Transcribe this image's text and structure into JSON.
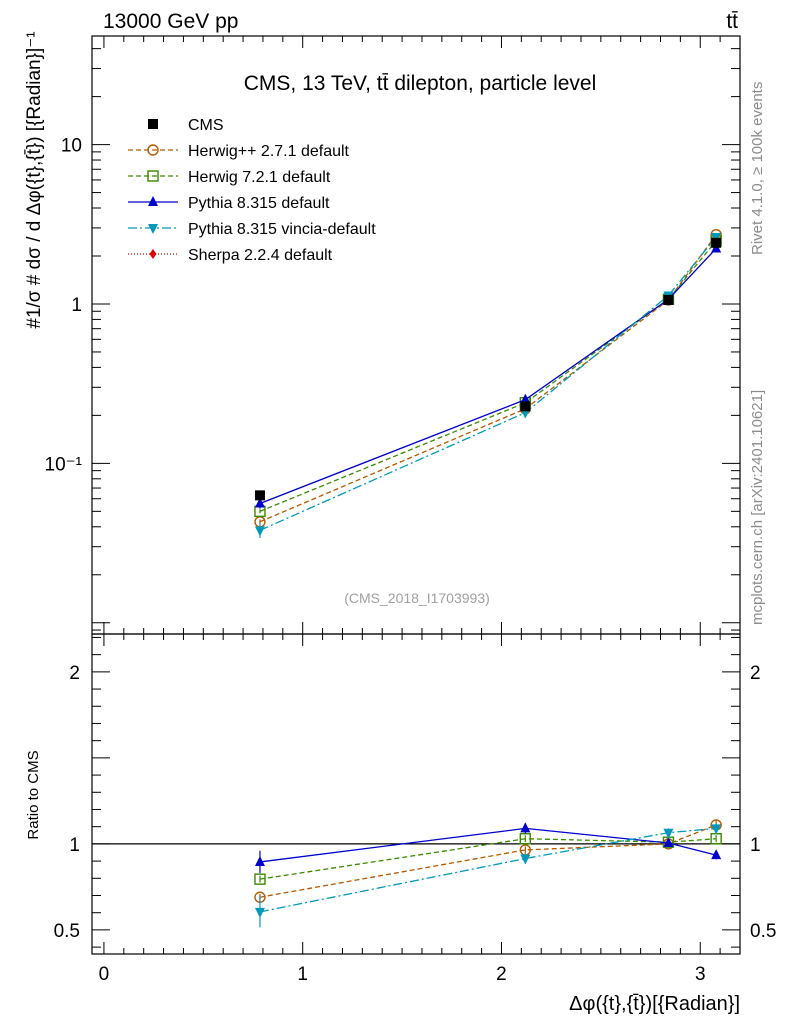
{
  "header": {
    "energy_label": "13000 GeV pp",
    "process_label": "tt̄"
  },
  "side_labels": {
    "rivet": "Rivet 4.1.0, ≥ 100k events",
    "mcplots": "mcplots.cern.ch [arXiv:2401.10621]"
  },
  "chart_data": [
    {
      "type": "line",
      "panel": "main",
      "title": "CMS, 13 TeV, tt̄ dilepton, particle level",
      "watermark": "(CMS_2018_I1703993)",
      "ylabel": "#1/σ # dσ / d Δφ({t},{t̄}) [{Radian}]⁻¹",
      "yscale": "log",
      "ylim": [
        0.0085,
        48
      ],
      "yticks": [
        {
          "value": 0.1,
          "label": "10⁻¹"
        },
        {
          "value": 1,
          "label": "1"
        },
        {
          "value": 10,
          "label": "10"
        }
      ],
      "xlim": [
        -0.06,
        3.2
      ],
      "xticks": [
        0,
        1,
        2,
        3
      ],
      "legend_position": "top-left",
      "data": {
        "name": "CMS",
        "x": [
          0.785,
          2.12,
          2.84,
          3.08
        ],
        "y": [
          0.063,
          0.228,
          1.06,
          2.42
        ],
        "color": "#000000",
        "marker": "square"
      },
      "series": [
        {
          "name": "Herwig++ 2.7.1 default",
          "x": [
            0.785,
            2.12,
            2.84,
            3.08
          ],
          "y": [
            0.043,
            0.22,
            1.06,
            2.72
          ],
          "color": "#b35900",
          "marker": "circle-open",
          "dash": "5,3",
          "yerr": [
            0.0015,
            0.004,
            0.01,
            0.05
          ]
        },
        {
          "name": "Herwig 7.2.1 default",
          "x": [
            0.785,
            2.12,
            2.84,
            3.08
          ],
          "y": [
            0.05,
            0.24,
            1.07,
            2.49
          ],
          "color": "#3a8a00",
          "marker": "square-open",
          "dash": "5,3",
          "yerr": [
            0.0015,
            0.004,
            0.01,
            0.04
          ]
        },
        {
          "name": "Pythia 8.315 default",
          "x": [
            0.785,
            2.12,
            2.84,
            3.08
          ],
          "y": [
            0.056,
            0.251,
            1.07,
            2.23
          ],
          "color": "#0000cc",
          "marker": "triangle-up",
          "dash": "",
          "yerr": [
            0.004,
            0.01,
            0.02,
            0.05
          ]
        },
        {
          "name": "Pythia 8.315 vincia-default",
          "x": [
            0.785,
            2.12,
            2.84,
            3.08
          ],
          "y": [
            0.038,
            0.208,
            1.13,
            2.63
          ],
          "color": "#0099bb",
          "marker": "triangle-down",
          "dash": "9,3,2,3",
          "yerr": [
            0.004,
            0.01,
            0.02,
            0.05
          ]
        },
        {
          "name": "Sherpa 2.2.4 default",
          "x": [],
          "y": [],
          "color": "#dd0000",
          "marker": "diamond",
          "dash": "1,2",
          "yerr": []
        }
      ]
    },
    {
      "type": "line",
      "panel": "ratio",
      "ylabel": "Ratio to CMS",
      "ylim": [
        0.36,
        2.22
      ],
      "yticks": [
        {
          "value": 0.5,
          "label": "0.5"
        },
        {
          "value": 1,
          "label": "1"
        },
        {
          "value": 2,
          "label": "2"
        }
      ],
      "xlabel": "Δφ({t},{t̄})[{Radian}]",
      "xlim": [
        -0.06,
        3.2
      ],
      "xticks": [
        {
          "value": 0,
          "label": "0"
        },
        {
          "value": 1,
          "label": "1"
        },
        {
          "value": 2,
          "label": "2"
        },
        {
          "value": 3,
          "label": "3"
        }
      ],
      "reference": 1,
      "series": [
        {
          "name": "Herwig++ 2.7.1 default",
          "x": [
            0.785,
            2.12,
            2.84,
            3.08
          ],
          "y": [
            0.69,
            0.965,
            1.0,
            1.11
          ],
          "yerr": [
            0.02,
            0.02,
            0.02,
            0.025
          ]
        },
        {
          "name": "Herwig 7.2.1 default",
          "x": [
            0.785,
            2.12,
            2.84,
            3.08
          ],
          "y": [
            0.795,
            1.03,
            1.01,
            1.03
          ],
          "yerr": [
            0.02,
            0.02,
            0.02,
            0.02
          ]
        },
        {
          "name": "Pythia 8.315 default",
          "x": [
            0.785,
            2.12,
            2.84,
            3.08
          ],
          "y": [
            0.895,
            1.09,
            1.005,
            0.935
          ],
          "yerr": [
            0.065,
            0.03,
            0.02,
            0.025
          ]
        },
        {
          "name": "Pythia 8.315 vincia-default",
          "x": [
            0.785,
            2.12,
            2.84,
            3.08
          ],
          "y": [
            0.605,
            0.915,
            1.065,
            1.09
          ],
          "yerr": [
            0.09,
            0.03,
            0.025,
            0.03
          ]
        },
        {
          "name": "Sherpa 2.2.4 default",
          "x": [],
          "y": [],
          "yerr": []
        }
      ]
    }
  ]
}
